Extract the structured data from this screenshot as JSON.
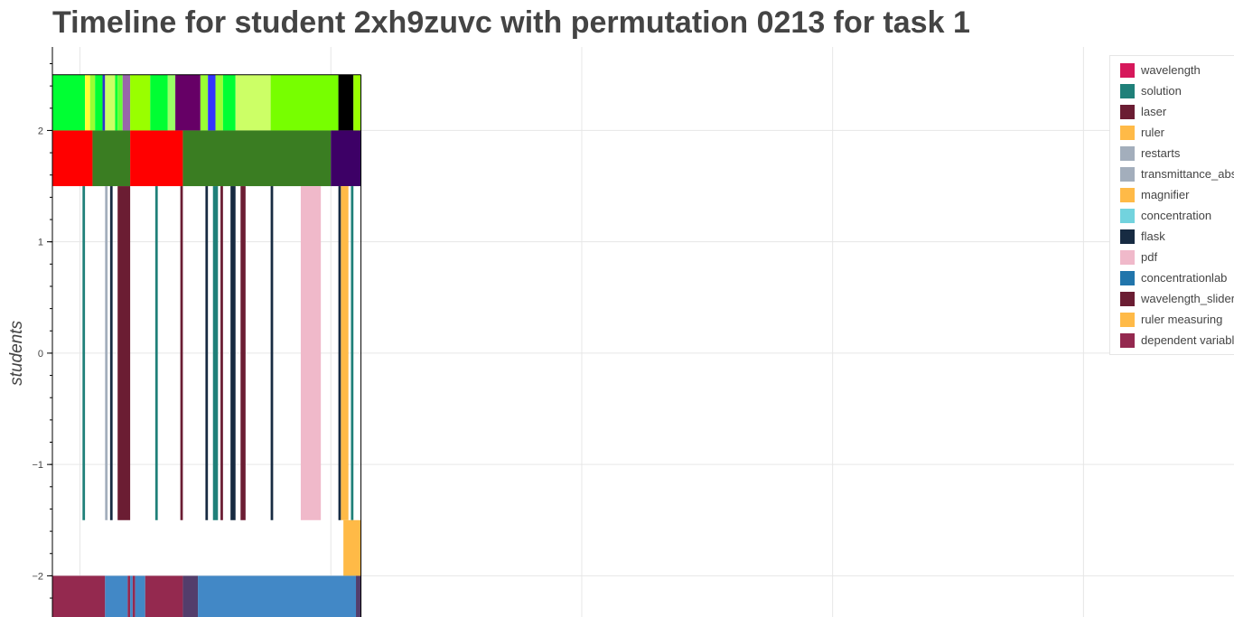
{
  "chart_data": {
    "type": "timeline",
    "title": "Timeline for student 2xh9zuvc with permutation 0213 for task 1",
    "xlabel": "",
    "ylabel": "students",
    "ylim": [
      -2.37,
      2.75
    ],
    "y_ticks": [
      {
        "value": 2,
        "label": "2"
      },
      {
        "value": 1,
        "label": "1"
      },
      {
        "value": 0,
        "label": "0"
      },
      {
        "value": -1,
        "label": "−1"
      },
      {
        "value": -2,
        "label": "−2"
      }
    ],
    "x_grid": [
      0,
      1,
      2,
      3,
      4
    ],
    "xlim": [
      -0.11,
      4.6
    ],
    "grid": true,
    "legend_position": "top-right",
    "legend": [
      {
        "label": "wavelength",
        "color": "#d6185b"
      },
      {
        "label": "solution",
        "color": "#1f8079"
      },
      {
        "label": "laser",
        "color": "#6b1d33"
      },
      {
        "label": "ruler",
        "color": "#ffba47"
      },
      {
        "label": "restarts",
        "color": "#a3aebc"
      },
      {
        "label": "transmittance_absorbance",
        "color": "#a3aebc"
      },
      {
        "label": "magnifier",
        "color": "#ffba47"
      },
      {
        "label": "concentration",
        "color": "#72d3de"
      },
      {
        "label": "flask",
        "color": "#172b42"
      },
      {
        "label": "pdf",
        "color": "#f0b9ca"
      },
      {
        "label": "concentrationlab",
        "color": "#2175ab"
      },
      {
        "label": "wavelength_slider",
        "color": "#6b1d33"
      },
      {
        "label": "ruler measuring",
        "color": "#ffba47"
      },
      {
        "label": "dependent variable",
        "color": "#94294f"
      }
    ],
    "rows": [
      {
        "y0": 2,
        "y1": 2.5,
        "segments": [
          {
            "x0": -0.11,
            "x1": 0.02,
            "color": "#00ff33"
          },
          {
            "x0": 0.02,
            "x1": 0.04,
            "color": "#ffff33"
          },
          {
            "x0": 0.04,
            "x1": 0.06,
            "color": "#99ff33"
          },
          {
            "x0": 0.06,
            "x1": 0.09,
            "color": "#00ff33"
          },
          {
            "x0": 0.09,
            "x1": 0.1,
            "color": "#3333cc"
          },
          {
            "x0": 0.1,
            "x1": 0.14,
            "color": "#ccff66"
          },
          {
            "x0": 0.14,
            "x1": 0.15,
            "color": "#00ff33"
          },
          {
            "x0": 0.15,
            "x1": 0.17,
            "color": "#66ff33"
          },
          {
            "x0": 0.17,
            "x1": 0.2,
            "color": "#9966aa"
          },
          {
            "x0": 0.2,
            "x1": 0.28,
            "color": "#99ff00"
          },
          {
            "x0": 0.28,
            "x1": 0.35,
            "color": "#00ff33"
          },
          {
            "x0": 0.35,
            "x1": 0.38,
            "color": "#99ff66"
          },
          {
            "x0": 0.38,
            "x1": 0.48,
            "color": "#660066"
          },
          {
            "x0": 0.48,
            "x1": 0.51,
            "color": "#99ff33"
          },
          {
            "x0": 0.51,
            "x1": 0.54,
            "color": "#3333ff"
          },
          {
            "x0": 0.54,
            "x1": 0.57,
            "color": "#99ff33"
          },
          {
            "x0": 0.57,
            "x1": 0.62,
            "color": "#00ff33"
          },
          {
            "x0": 0.62,
            "x1": 0.76,
            "color": "#ccff66"
          },
          {
            "x0": 0.76,
            "x1": 1.03,
            "color": "#77ff00"
          },
          {
            "x0": 1.03,
            "x1": 1.09,
            "color": "#000000"
          },
          {
            "x0": 1.09,
            "x1": 1.12,
            "color": "#99ff00"
          }
        ]
      },
      {
        "y0": 1.5,
        "y1": 2,
        "segments": [
          {
            "x0": -0.11,
            "x1": 0.05,
            "color": "#ff0000"
          },
          {
            "x0": 0.05,
            "x1": 0.2,
            "color": "#3a7d22"
          },
          {
            "x0": 0.2,
            "x1": 0.41,
            "color": "#ff0000"
          },
          {
            "x0": 0.41,
            "x1": 1.0,
            "color": "#3a7d22"
          },
          {
            "x0": 1.0,
            "x1": 1.12,
            "color": "#3d0066"
          }
        ]
      },
      {
        "y0": -1.5,
        "y1": 1.5,
        "segments": [
          {
            "x0": 0.01,
            "x1": 0.02,
            "color": "#1f8079"
          },
          {
            "x0": 0.1,
            "x1": 0.11,
            "color": "#a3aebc"
          },
          {
            "x0": 0.12,
            "x1": 0.13,
            "color": "#172b42"
          },
          {
            "x0": 0.15,
            "x1": 0.2,
            "color": "#6b1d33"
          },
          {
            "x0": 0.3,
            "x1": 0.31,
            "color": "#1f8079"
          },
          {
            "x0": 0.4,
            "x1": 0.41,
            "color": "#6b1d33"
          },
          {
            "x0": 0.5,
            "x1": 0.51,
            "color": "#172b42"
          },
          {
            "x0": 0.53,
            "x1": 0.55,
            "color": "#1f8079"
          },
          {
            "x0": 0.56,
            "x1": 0.57,
            "color": "#6b1d33"
          },
          {
            "x0": 0.6,
            "x1": 0.62,
            "color": "#172b42"
          },
          {
            "x0": 0.64,
            "x1": 0.66,
            "color": "#6b1d33"
          },
          {
            "x0": 0.76,
            "x1": 0.77,
            "color": "#172b42"
          },
          {
            "x0": 0.88,
            "x1": 0.96,
            "color": "#f0b9ca"
          },
          {
            "x0": 1.03,
            "x1": 1.04,
            "color": "#172b42"
          },
          {
            "x0": 1.04,
            "x1": 1.07,
            "color": "#ffba47"
          },
          {
            "x0": 1.08,
            "x1": 1.09,
            "color": "#1f8079"
          }
        ]
      },
      {
        "y0": -2,
        "y1": -1.5,
        "segments": [
          {
            "x0": 1.05,
            "x1": 1.12,
            "color": "#ffba47"
          }
        ]
      },
      {
        "y0": -2.37,
        "y1": -2,
        "segments": [
          {
            "x0": -0.11,
            "x1": 0.1,
            "color": "#94294f"
          },
          {
            "x0": 0.1,
            "x1": 0.19,
            "color": "#4288c6"
          },
          {
            "x0": 0.19,
            "x1": 0.2,
            "color": "#94294f"
          },
          {
            "x0": 0.2,
            "x1": 0.21,
            "color": "#4288c6"
          },
          {
            "x0": 0.21,
            "x1": 0.22,
            "color": "#94294f"
          },
          {
            "x0": 0.22,
            "x1": 0.26,
            "color": "#4288c6"
          },
          {
            "x0": 0.26,
            "x1": 0.41,
            "color": "#94294f"
          },
          {
            "x0": 0.41,
            "x1": 0.47,
            "color": "#533d6b"
          },
          {
            "x0": 0.47,
            "x1": 1.1,
            "color": "#4288c6"
          },
          {
            "x0": 1.1,
            "x1": 1.12,
            "color": "#533d6b"
          }
        ]
      }
    ]
  }
}
